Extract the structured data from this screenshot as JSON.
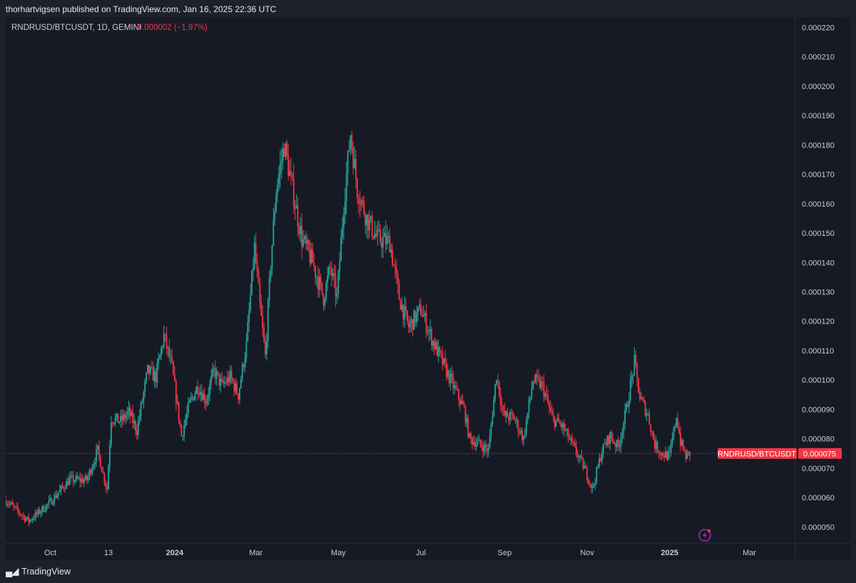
{
  "attribution": "thorhartvigsen published on TradingView.com, Jan 16, 2025 22:36 UTC",
  "legend": {
    "symbol": "RNDRUSD/BTCUSDT, 1D, GEMINI",
    "change": "−0.000002 (−1.97%)"
  },
  "footer": {
    "logo_text": "TradingView",
    "icon": "tradingview-logo-icon"
  },
  "colors": {
    "up": "#26a69a",
    "down": "#f23645",
    "price_line": "#f23645",
    "background": "#161a25"
  },
  "chart_data": {
    "type": "line",
    "style": "candlestick",
    "ylim": [
      4.45e-05,
      0.0002235
    ],
    "y_ticks": [
      "0.000220",
      "0.000210",
      "0.000200",
      "0.000190",
      "0.000180",
      "0.000170",
      "0.000160",
      "0.000150",
      "0.000140",
      "0.000130",
      "0.000120",
      "0.000110",
      "0.000100",
      "0.000090",
      "0.000080",
      "0.000070",
      "0.000060",
      "0.000050"
    ],
    "x_ticks": [
      {
        "label": "Oct",
        "date": "2023-10-01",
        "bold": false
      },
      {
        "label": "13",
        "date": "2023-11-13",
        "bold": false
      },
      {
        "label": "2024",
        "date": "2024-01-01",
        "bold": true
      },
      {
        "label": "Mar",
        "date": "2024-03-01",
        "bold": false
      },
      {
        "label": "May",
        "date": "2024-05-01",
        "bold": false
      },
      {
        "label": "Jul",
        "date": "2024-07-01",
        "bold": false
      },
      {
        "label": "Sep",
        "date": "2024-09-01",
        "bold": false
      },
      {
        "label": "Nov",
        "date": "2024-11-01",
        "bold": false
      },
      {
        "label": "2025",
        "date": "2025-01-01",
        "bold": true
      },
      {
        "label": "Mar",
        "date": "2025-03-01",
        "bold": false
      }
    ],
    "x_range": [
      "2023-08-29",
      "2025-04-04"
    ],
    "price_series": [
      [
        "2023-08-29",
        5.9e-05
      ],
      [
        "2023-09-15",
        5.2e-05
      ],
      [
        "2023-09-30",
        5.8e-05
      ],
      [
        "2023-10-15",
        6.6e-05
      ],
      [
        "2023-10-28",
        6.6e-05
      ],
      [
        "2023-11-05",
        7.6e-05
      ],
      [
        "2023-11-09",
        6.8e-05
      ],
      [
        "2023-11-12",
        6.3e-05
      ],
      [
        "2023-11-15",
        8.7e-05
      ],
      [
        "2023-11-22",
        8.6e-05
      ],
      [
        "2023-11-28",
        8.9e-05
      ],
      [
        "2023-12-04",
        8.3e-05
      ],
      [
        "2023-12-12",
        0.000103
      ],
      [
        "2023-12-18",
        0.000101
      ],
      [
        "2023-12-24",
        0.000115
      ],
      [
        "2023-12-30",
        0.000104
      ],
      [
        "2024-01-06",
        8.1e-05
      ],
      [
        "2024-01-12",
        9.2e-05
      ],
      [
        "2024-01-18",
        9.8e-05
      ],
      [
        "2024-01-24",
        9.3e-05
      ],
      [
        "2024-01-30",
        0.000103
      ],
      [
        "2024-02-05",
        9.8e-05
      ],
      [
        "2024-02-11",
        0.000101
      ],
      [
        "2024-02-17",
        9.5e-05
      ],
      [
        "2024-02-23",
        0.000112
      ],
      [
        "2024-02-29",
        0.000145
      ],
      [
        "2024-03-04",
        0.000125
      ],
      [
        "2024-03-08",
        0.000108
      ],
      [
        "2024-03-12",
        0.00014
      ],
      [
        "2024-03-16",
        0.000165
      ],
      [
        "2024-03-22",
        0.00018
      ],
      [
        "2024-03-28",
        0.000165
      ],
      [
        "2024-04-04",
        0.000148
      ],
      [
        "2024-04-12",
        0.00014
      ],
      [
        "2024-04-20",
        0.000128
      ],
      [
        "2024-04-25",
        0.000138
      ],
      [
        "2024-04-30",
        0.000128
      ],
      [
        "2024-05-05",
        0.00016
      ],
      [
        "2024-05-10",
        0.000184
      ],
      [
        "2024-05-15",
        0.000165
      ],
      [
        "2024-05-22",
        0.000155
      ],
      [
        "2024-05-30",
        0.000148
      ],
      [
        "2024-06-08",
        0.000147
      ],
      [
        "2024-06-15",
        0.000128
      ],
      [
        "2024-06-22",
        0.000118
      ],
      [
        "2024-07-01",
        0.000124
      ],
      [
        "2024-07-10",
        0.000113
      ],
      [
        "2024-07-18",
        0.000105
      ],
      [
        "2024-07-26",
        9.7e-05
      ],
      [
        "2024-08-02",
        9e-05
      ],
      [
        "2024-08-06",
        8e-05
      ],
      [
        "2024-08-14",
        7.8e-05
      ],
      [
        "2024-08-20",
        7.6e-05
      ],
      [
        "2024-08-26",
        0.000102
      ],
      [
        "2024-08-31",
        8.8e-05
      ],
      [
        "2024-09-08",
        8.7e-05
      ],
      [
        "2024-09-15",
        8e-05
      ],
      [
        "2024-09-22",
        0.0001
      ],
      [
        "2024-09-29",
        9.8e-05
      ],
      [
        "2024-10-06",
        8.7e-05
      ],
      [
        "2024-10-14",
        8.4e-05
      ],
      [
        "2024-10-22",
        7.7e-05
      ],
      [
        "2024-10-30",
        7e-05
      ],
      [
        "2024-11-05",
        6.3e-05
      ],
      [
        "2024-11-12",
        7.6e-05
      ],
      [
        "2024-11-18",
        8.1e-05
      ],
      [
        "2024-11-24",
        7.7e-05
      ],
      [
        "2024-11-30",
        9e-05
      ],
      [
        "2024-12-06",
        0.000106
      ],
      [
        "2024-12-10",
        9.4e-05
      ],
      [
        "2024-12-16",
        8.8e-05
      ],
      [
        "2024-12-21",
        7.8e-05
      ],
      [
        "2024-12-26",
        7.5e-05
      ],
      [
        "2025-01-01",
        7.4e-05
      ],
      [
        "2025-01-06",
        8.8e-05
      ],
      [
        "2025-01-09",
        7.9e-05
      ],
      [
        "2025-01-13",
        7.4e-05
      ],
      [
        "2025-01-16",
        7.5e-05
      ]
    ],
    "last_price_label": {
      "name": "RNDRUSD/BTCUSDT",
      "value": "0.000075"
    },
    "last_price": 7.5e-05
  }
}
